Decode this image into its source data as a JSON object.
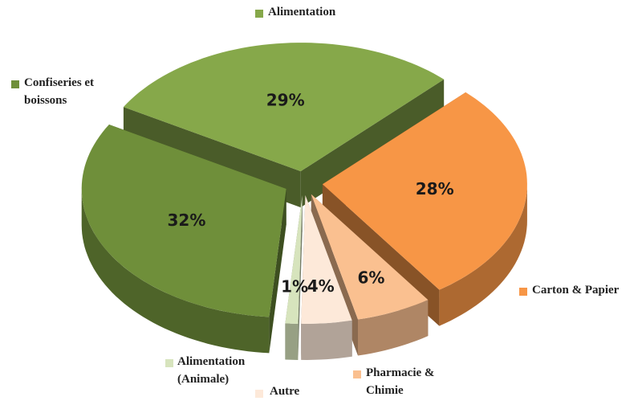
{
  "chart_data": {
    "type": "pie",
    "categories": [
      "Alimentation",
      "Carton & Papier",
      "Pharmacie & Chimie",
      "Autre",
      "Alimentation (Animale)",
      "Confiseries et boissons"
    ],
    "values": [
      29,
      28,
      6,
      4,
      1,
      32
    ],
    "value_labels": [
      "29%",
      "28%",
      "6%",
      "4%",
      "1%",
      "32%"
    ],
    "colors": [
      "#86a84a",
      "#f79646",
      "#fac090",
      "#fde9d9",
      "#d7e4bd",
      "#6f8f3a"
    ]
  }
}
